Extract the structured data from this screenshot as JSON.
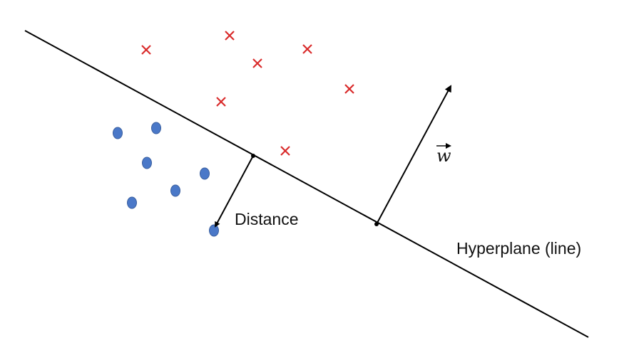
{
  "labels": {
    "distance": "Distance",
    "hyperplane": "Hyperplane (line)",
    "weight_vector": "w"
  },
  "colors": {
    "line": "#000000",
    "cross": "#d92b2b",
    "dot_fill": "#4a78c8",
    "dot_stroke": "#3a5f9f"
  },
  "classes": {
    "positive_marker": "cross",
    "negative_marker": "dot"
  }
}
